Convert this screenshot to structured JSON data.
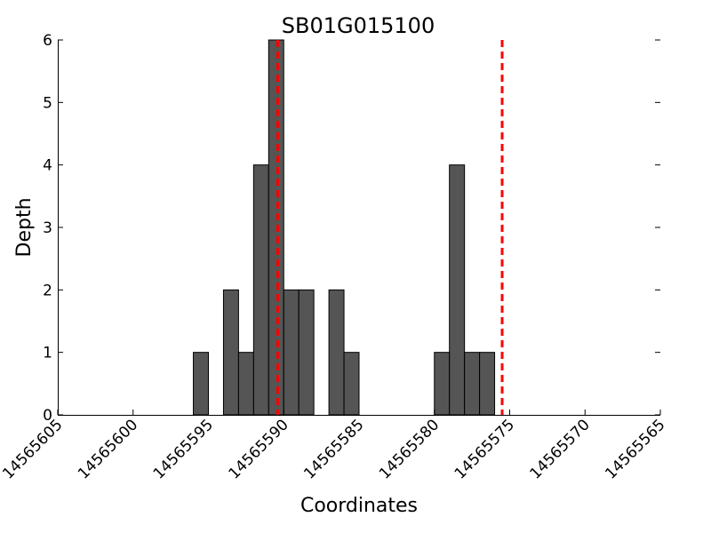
{
  "chart_data": {
    "type": "bar",
    "title": "SB01G015100",
    "xlabel": "Coordinates",
    "ylabel": "Depth",
    "xlim": [
      14565605,
      14565565
    ],
    "ylim": [
      0,
      6
    ],
    "x_reversed": true,
    "bin_width": 1,
    "x_ticks": [
      14565605,
      14565600,
      14565595,
      14565590,
      14565585,
      14565580,
      14565575,
      14565570,
      14565565
    ],
    "y_ticks": [
      0,
      1,
      2,
      3,
      4,
      5,
      6
    ],
    "bars": [
      {
        "x": 14565596,
        "value": 1
      },
      {
        "x": 14565594,
        "value": 2
      },
      {
        "x": 14565593,
        "value": 1
      },
      {
        "x": 14565592,
        "value": 4
      },
      {
        "x": 14565591,
        "value": 6
      },
      {
        "x": 14565590,
        "value": 2
      },
      {
        "x": 14565589,
        "value": 2
      },
      {
        "x": 14565587,
        "value": 2
      },
      {
        "x": 14565586,
        "value": 1
      },
      {
        "x": 14565580,
        "value": 1
      },
      {
        "x": 14565579,
        "value": 4
      },
      {
        "x": 14565578,
        "value": 1
      },
      {
        "x": 14565577,
        "value": 1
      }
    ],
    "reference_lines": [
      14565590.4,
      14565575.5
    ],
    "colors": {
      "bar_fill": "#555555",
      "bar_edge": "#000000",
      "reference_line": "#ff0000"
    },
    "grid": false,
    "legend": "none"
  }
}
